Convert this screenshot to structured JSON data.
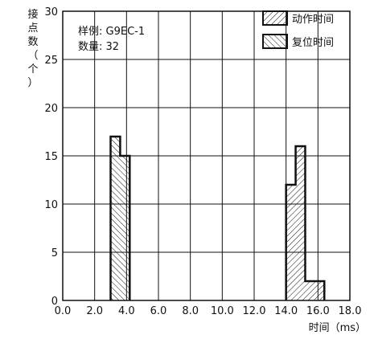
{
  "chart_data": {
    "type": "bar",
    "title": "",
    "xlabel": "时间（ms）",
    "ylabel": [
      "接",
      "点",
      "数",
      "（",
      "个",
      "）"
    ],
    "xlim": [
      0,
      18
    ],
    "ylim": [
      0,
      30
    ],
    "x_ticks": [
      "0.0",
      "2.0",
      "4.0",
      "6.0",
      "8.0",
      "10.0",
      "12.0",
      "14.0",
      "16.0",
      "18.0"
    ],
    "y_ticks": [
      "0",
      "5",
      "10",
      "15",
      "20",
      "25",
      "30"
    ],
    "grid": true,
    "legend_position": "top-right",
    "bin_width": 0.6,
    "info": {
      "sample_label": "样例: G9EC-1",
      "quantity_label": "数量: 32"
    },
    "series": [
      {
        "name": "动作时间",
        "pattern": "hatch-forward",
        "bins": [
          {
            "start": 14.0,
            "end": 14.6,
            "count": 12
          },
          {
            "start": 14.6,
            "end": 15.2,
            "count": 16
          },
          {
            "start": 15.2,
            "end": 15.8,
            "count": 2
          },
          {
            "start": 15.8,
            "end": 16.4,
            "count": 2
          }
        ]
      },
      {
        "name": "复位时间",
        "pattern": "hatch-backward",
        "bins": [
          {
            "start": 3.0,
            "end": 3.6,
            "count": 17
          },
          {
            "start": 3.6,
            "end": 4.2,
            "count": 15
          }
        ]
      }
    ]
  }
}
